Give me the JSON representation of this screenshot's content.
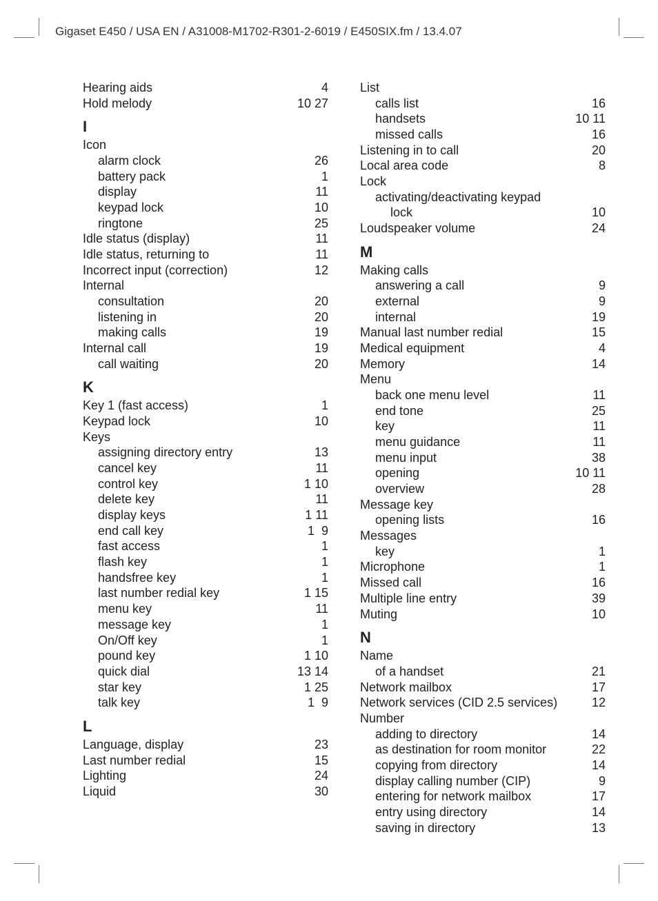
{
  "header": "Gigaset E450 / USA EN / A31008-M1702-R301-2-6019 / E450SIX.fm / 13.4.07",
  "left": [
    {
      "t": "e",
      "i": 0,
      "label": "Hearing aids",
      "p": [
        "4"
      ]
    },
    {
      "t": "e",
      "i": 0,
      "label": "Hold melody",
      "p": [
        "10",
        "27"
      ]
    },
    {
      "t": "h",
      "label": "I"
    },
    {
      "t": "e",
      "i": 0,
      "label": "Icon",
      "p": []
    },
    {
      "t": "e",
      "i": 1,
      "label": "alarm clock",
      "p": [
        "26"
      ]
    },
    {
      "t": "e",
      "i": 1,
      "label": "battery pack",
      "p": [
        "1"
      ]
    },
    {
      "t": "e",
      "i": 1,
      "label": "display",
      "p": [
        "11"
      ]
    },
    {
      "t": "e",
      "i": 1,
      "label": "keypad lock",
      "p": [
        "10"
      ]
    },
    {
      "t": "e",
      "i": 1,
      "label": "ringtone",
      "p": [
        "25"
      ]
    },
    {
      "t": "e",
      "i": 0,
      "label": "Idle status (display)",
      "p": [
        "11"
      ]
    },
    {
      "t": "e",
      "i": 0,
      "label": "Idle status, returning to",
      "p": [
        "11"
      ]
    },
    {
      "t": "e",
      "i": 0,
      "label": "Incorrect input (correction)",
      "p": [
        "12"
      ]
    },
    {
      "t": "e",
      "i": 0,
      "label": "Internal",
      "p": []
    },
    {
      "t": "e",
      "i": 1,
      "label": "consultation",
      "p": [
        "20"
      ]
    },
    {
      "t": "e",
      "i": 1,
      "label": "listening in",
      "p": [
        "20"
      ]
    },
    {
      "t": "e",
      "i": 1,
      "label": "making calls",
      "p": [
        "19"
      ]
    },
    {
      "t": "e",
      "i": 0,
      "label": "Internal call",
      "p": [
        "19"
      ]
    },
    {
      "t": "e",
      "i": 1,
      "label": "call waiting",
      "p": [
        "20"
      ]
    },
    {
      "t": "h",
      "label": "K"
    },
    {
      "t": "e",
      "i": 0,
      "label": "Key 1 (fast access)",
      "p": [
        "1"
      ]
    },
    {
      "t": "e",
      "i": 0,
      "label": "Keypad lock",
      "p": [
        "10"
      ]
    },
    {
      "t": "e",
      "i": 0,
      "label": "Keys",
      "p": []
    },
    {
      "t": "e",
      "i": 1,
      "label": "assigning directory entry",
      "p": [
        "13"
      ]
    },
    {
      "t": "e",
      "i": 1,
      "label": "cancel key",
      "p": [
        "11"
      ]
    },
    {
      "t": "e",
      "i": 1,
      "label": "control key",
      "p": [
        "1",
        "10"
      ]
    },
    {
      "t": "e",
      "i": 1,
      "label": "delete key",
      "p": [
        "11"
      ]
    },
    {
      "t": "e",
      "i": 1,
      "label": "display keys",
      "p": [
        "1",
        "11"
      ]
    },
    {
      "t": "e",
      "i": 1,
      "label": "end call key",
      "p": [
        "1",
        "9"
      ]
    },
    {
      "t": "e",
      "i": 1,
      "label": "fast access",
      "p": [
        "1"
      ]
    },
    {
      "t": "e",
      "i": 1,
      "label": "flash key",
      "p": [
        "1"
      ]
    },
    {
      "t": "e",
      "i": 1,
      "label": "handsfree key",
      "p": [
        "1"
      ]
    },
    {
      "t": "e",
      "i": 1,
      "label": "last number redial key",
      "p": [
        "1",
        "15"
      ]
    },
    {
      "t": "e",
      "i": 1,
      "label": "menu key",
      "p": [
        "11"
      ]
    },
    {
      "t": "e",
      "i": 1,
      "label": "message key",
      "p": [
        "1"
      ]
    },
    {
      "t": "e",
      "i": 1,
      "label": "On/Off key",
      "p": [
        "1"
      ]
    },
    {
      "t": "e",
      "i": 1,
      "label": "pound key",
      "p": [
        "1",
        "10"
      ]
    },
    {
      "t": "e",
      "i": 1,
      "label": "quick dial",
      "p": [
        "13",
        "14"
      ]
    },
    {
      "t": "e",
      "i": 1,
      "label": "star key",
      "p": [
        "1",
        "25"
      ]
    },
    {
      "t": "e",
      "i": 1,
      "label": "talk key",
      "p": [
        "1",
        "9"
      ]
    },
    {
      "t": "h",
      "label": "L"
    },
    {
      "t": "e",
      "i": 0,
      "label": "Language, display",
      "p": [
        "23"
      ]
    },
    {
      "t": "e",
      "i": 0,
      "label": "Last number redial",
      "p": [
        "15"
      ]
    },
    {
      "t": "e",
      "i": 0,
      "label": "Lighting",
      "p": [
        "24"
      ]
    },
    {
      "t": "e",
      "i": 0,
      "label": "Liquid",
      "p": [
        "30"
      ]
    }
  ],
  "right": [
    {
      "t": "e",
      "i": 0,
      "label": "List",
      "p": []
    },
    {
      "t": "e",
      "i": 1,
      "label": "calls list",
      "p": [
        "16"
      ]
    },
    {
      "t": "e",
      "i": 1,
      "label": "handsets",
      "p": [
        "10",
        "11"
      ]
    },
    {
      "t": "e",
      "i": 1,
      "label": "missed calls",
      "p": [
        "16"
      ]
    },
    {
      "t": "e",
      "i": 0,
      "label": "Listening in to call",
      "p": [
        "20"
      ]
    },
    {
      "t": "e",
      "i": 0,
      "label": "Local area code",
      "p": [
        "8"
      ]
    },
    {
      "t": "e",
      "i": 0,
      "label": "Lock",
      "p": []
    },
    {
      "t": "e",
      "i": 1,
      "label": "activating/deactivating keypad",
      "p": []
    },
    {
      "t": "e",
      "i": 2,
      "label": "lock",
      "p": [
        "10"
      ]
    },
    {
      "t": "e",
      "i": 0,
      "label": "Loudspeaker volume",
      "p": [
        "24"
      ]
    },
    {
      "t": "h",
      "label": "M"
    },
    {
      "t": "e",
      "i": 0,
      "label": "Making calls",
      "p": []
    },
    {
      "t": "e",
      "i": 1,
      "label": "answering a call",
      "p": [
        "9"
      ]
    },
    {
      "t": "e",
      "i": 1,
      "label": "external",
      "p": [
        "9"
      ]
    },
    {
      "t": "e",
      "i": 1,
      "label": "internal",
      "p": [
        "19"
      ]
    },
    {
      "t": "e",
      "i": 0,
      "label": "Manual last number redial",
      "p": [
        "15"
      ]
    },
    {
      "t": "e",
      "i": 0,
      "label": "Medical equipment",
      "p": [
        "4"
      ]
    },
    {
      "t": "e",
      "i": 0,
      "label": "Memory",
      "p": [
        "14"
      ]
    },
    {
      "t": "e",
      "i": 0,
      "label": "Menu",
      "p": []
    },
    {
      "t": "e",
      "i": 1,
      "label": "back one menu level",
      "p": [
        "11"
      ]
    },
    {
      "t": "e",
      "i": 1,
      "label": "end tone",
      "p": [
        "25"
      ]
    },
    {
      "t": "e",
      "i": 1,
      "label": "key",
      "p": [
        "11"
      ]
    },
    {
      "t": "e",
      "i": 1,
      "label": "menu guidance",
      "p": [
        "11"
      ]
    },
    {
      "t": "e",
      "i": 1,
      "label": "menu input",
      "p": [
        "38"
      ]
    },
    {
      "t": "e",
      "i": 1,
      "label": "opening",
      "p": [
        "10",
        "11"
      ]
    },
    {
      "t": "e",
      "i": 1,
      "label": "overview",
      "p": [
        "28"
      ]
    },
    {
      "t": "e",
      "i": 0,
      "label": "Message key",
      "p": []
    },
    {
      "t": "e",
      "i": 1,
      "label": "opening lists",
      "p": [
        "16"
      ]
    },
    {
      "t": "e",
      "i": 0,
      "label": "Messages",
      "p": []
    },
    {
      "t": "e",
      "i": 1,
      "label": "key",
      "p": [
        "1"
      ]
    },
    {
      "t": "e",
      "i": 0,
      "label": "Microphone",
      "p": [
        "1"
      ]
    },
    {
      "t": "e",
      "i": 0,
      "label": "Missed call",
      "p": [
        "16"
      ]
    },
    {
      "t": "e",
      "i": 0,
      "label": "Multiple line entry",
      "p": [
        "39"
      ]
    },
    {
      "t": "e",
      "i": 0,
      "label": "Muting",
      "p": [
        "10"
      ]
    },
    {
      "t": "h",
      "label": "N"
    },
    {
      "t": "e",
      "i": 0,
      "label": "Name",
      "p": []
    },
    {
      "t": "e",
      "i": 1,
      "label": "of a handset",
      "p": [
        "21"
      ]
    },
    {
      "t": "e",
      "i": 0,
      "label": "Network mailbox",
      "p": [
        "17"
      ]
    },
    {
      "t": "e",
      "i": 0,
      "label": "Network services (CID 2.5 services)",
      "p": [
        "12"
      ]
    },
    {
      "t": "e",
      "i": 0,
      "label": "Number",
      "p": []
    },
    {
      "t": "e",
      "i": 1,
      "label": "adding to directory",
      "p": [
        "14"
      ]
    },
    {
      "t": "e",
      "i": 1,
      "label": "as destination for room monitor",
      "p": [
        "22"
      ]
    },
    {
      "t": "e",
      "i": 1,
      "label": "copying from directory",
      "p": [
        "14"
      ]
    },
    {
      "t": "e",
      "i": 1,
      "label": "display calling number (CIP)",
      "p": [
        "9"
      ]
    },
    {
      "t": "e",
      "i": 1,
      "label": "entering for network mailbox",
      "p": [
        "17"
      ]
    },
    {
      "t": "e",
      "i": 1,
      "label": "entry using directory",
      "p": [
        "14"
      ]
    },
    {
      "t": "e",
      "i": 1,
      "label": "saving in directory",
      "p": [
        "13"
      ]
    }
  ]
}
